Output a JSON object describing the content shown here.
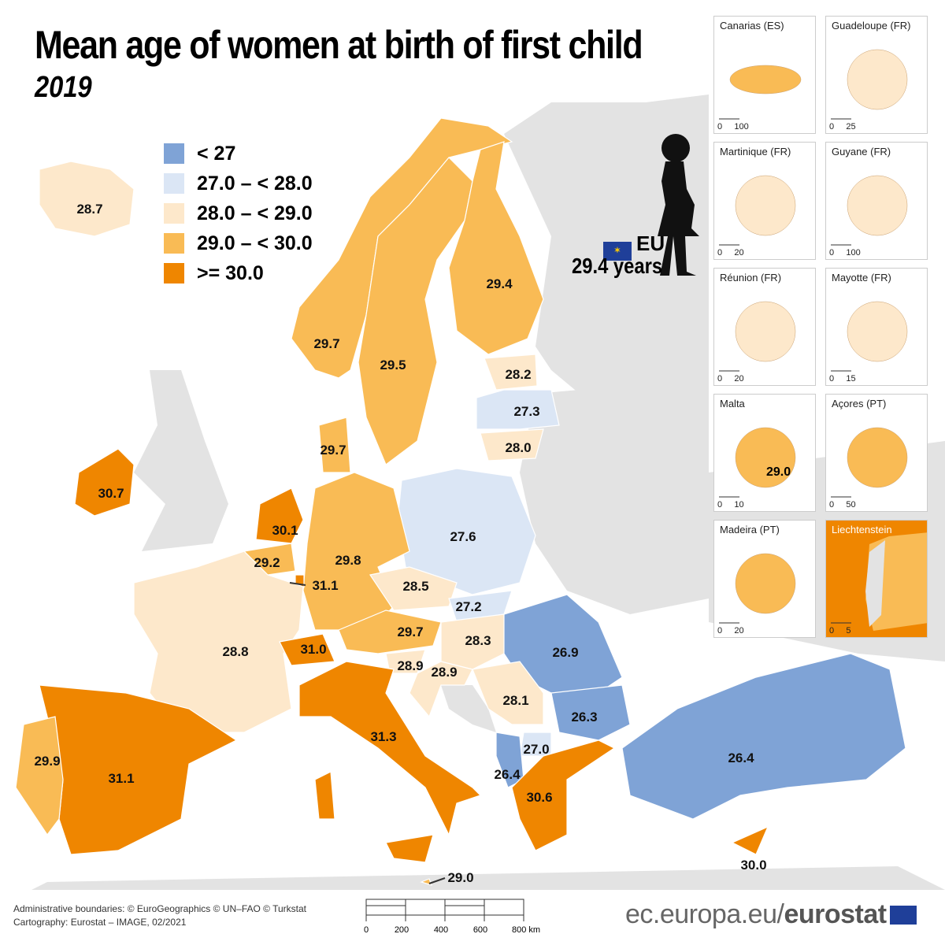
{
  "title": "Mean age of women at birth of first child",
  "subtitle": "2019",
  "colors": {
    "lt27": "#7fa3d6",
    "c27_28": "#dbe6f5",
    "c28_29": "#fde8cb",
    "c29_30": "#f9bb55",
    "ge30": "#ef8600",
    "nodata": "#e3e3e3"
  },
  "legend": [
    {
      "label": "< 27",
      "color": "#7fa3d6"
    },
    {
      "label": "27.0 – < 28.0",
      "color": "#dbe6f5"
    },
    {
      "label": "28.0 – < 29.0",
      "color": "#fde8cb"
    },
    {
      "label": "29.0 – < 30.0",
      "color": "#f9bb55"
    },
    {
      "label": ">= 30.0",
      "color": "#ef8600"
    }
  ],
  "eu": {
    "label": "EU",
    "value": "29.4 years"
  },
  "values": [
    "28.7",
    "29.7",
    "29.5",
    "29.4",
    "28.2",
    "27.3",
    "28.0",
    "27.6",
    "29.8",
    "29.7",
    "30.1",
    "29.2",
    "31.1",
    "28.8",
    "31.0",
    "29.7",
    "28.5",
    "27.2",
    "28.3",
    "28.9",
    "28.9",
    "26.9",
    "26.3",
    "28.1",
    "27.0",
    "26.4",
    "30.6",
    "26.4",
    "30.0",
    "31.3",
    "31.1",
    "29.9",
    "30.7",
    "29.0"
  ],
  "insets": [
    {
      "name": "Canarias (ES)",
      "scale": [
        "0",
        "100"
      ]
    },
    {
      "name": "Guadeloupe (FR)",
      "scale": [
        "0",
        "25"
      ]
    },
    {
      "name": "Martinique (FR)",
      "scale": [
        "0",
        "20"
      ]
    },
    {
      "name": "Guyane (FR)",
      "scale": [
        "0",
        "100"
      ]
    },
    {
      "name": "Réunion (FR)",
      "scale": [
        "0",
        "20"
      ]
    },
    {
      "name": "Mayotte (FR)",
      "scale": [
        "0",
        "15"
      ]
    },
    {
      "name": "Malta",
      "scale": [
        "0",
        "10"
      ],
      "value": "29.0"
    },
    {
      "name": "Açores (PT)",
      "scale": [
        "0",
        "50"
      ]
    },
    {
      "name": "Madeira (PT)",
      "scale": [
        "0",
        "20"
      ]
    },
    {
      "name": "Liechtenstein",
      "scale": [
        "0",
        "5"
      ]
    }
  ],
  "scalebar": {
    "ticks": [
      "0",
      "200",
      "400",
      "600",
      "800 km"
    ]
  },
  "footer": {
    "line1": "Administrative boundaries: © EuroGeographics © UN–FAO © Turkstat",
    "line2": "Cartography: Eurostat – IMAGE, 02/2021"
  },
  "brand": {
    "prefix": "ec.europa.eu/",
    "name": "eurostat"
  }
}
